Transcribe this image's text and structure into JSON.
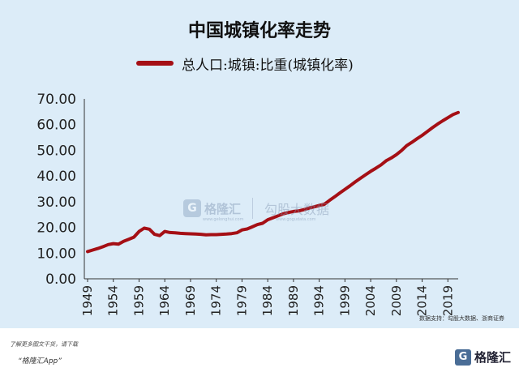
{
  "chart_data": {
    "type": "line",
    "title": "中国城镇化率走势",
    "xlabel": "",
    "ylabel": "",
    "ylim": [
      0,
      70
    ],
    "yticks": [
      "0.00",
      "10.00",
      "20.00",
      "30.00",
      "40.00",
      "50.00",
      "60.00",
      "70.00"
    ],
    "xticks": [
      "1949",
      "1954",
      "1959",
      "1964",
      "1969",
      "1974",
      "1979",
      "1984",
      "1989",
      "1994",
      "1999",
      "2004",
      "2009",
      "2014",
      "2019"
    ],
    "legend_position": "top",
    "series": [
      {
        "name": "总人口:城镇:比重(城镇化率)",
        "color": "#a50f15",
        "x": [
          1949,
          1950,
          1951,
          1952,
          1953,
          1954,
          1955,
          1956,
          1957,
          1958,
          1959,
          1960,
          1961,
          1962,
          1963,
          1964,
          1965,
          1966,
          1967,
          1968,
          1969,
          1970,
          1971,
          1972,
          1973,
          1974,
          1975,
          1976,
          1977,
          1978,
          1979,
          1980,
          1981,
          1982,
          1983,
          1984,
          1985,
          1986,
          1987,
          1988,
          1989,
          1990,
          1991,
          1992,
          1993,
          1994,
          1995,
          1996,
          1997,
          1998,
          1999,
          2000,
          2001,
          2002,
          2003,
          2004,
          2005,
          2006,
          2007,
          2008,
          2009,
          2010,
          2011,
          2012,
          2013,
          2014,
          2015,
          2016,
          2017,
          2018,
          2019,
          2020,
          2021
        ],
        "values": [
          10.6,
          11.2,
          11.8,
          12.5,
          13.3,
          13.7,
          13.5,
          14.6,
          15.4,
          16.2,
          18.4,
          19.7,
          19.3,
          17.3,
          16.8,
          18.4,
          18.0,
          17.9,
          17.7,
          17.6,
          17.5,
          17.4,
          17.3,
          17.1,
          17.2,
          17.2,
          17.3,
          17.4,
          17.6,
          17.9,
          19.0,
          19.4,
          20.2,
          21.1,
          21.6,
          23.0,
          23.7,
          24.5,
          25.3,
          25.8,
          26.2,
          26.4,
          26.9,
          27.5,
          28.0,
          28.5,
          29.0,
          30.5,
          31.9,
          33.4,
          34.8,
          36.2,
          37.7,
          39.1,
          40.5,
          41.8,
          43.0,
          44.3,
          45.9,
          47.0,
          48.3,
          49.9,
          51.8,
          53.1,
          54.5,
          55.8,
          57.3,
          58.8,
          60.2,
          61.5,
          62.7,
          63.9,
          64.7
        ]
      }
    ]
  },
  "watermark": {
    "logo_glyph": "G",
    "brand": "格隆汇",
    "brand2": "勾股大数据",
    "url1": "www.gelonghui.com",
    "url2": "www.gogudata.com"
  },
  "source_text": "数据支持：勾股大数据、浙商证券",
  "footer": {
    "note1": "了解更多图文干货，请下载",
    "note2": "“格隆汇App”",
    "logo_glyph": "G",
    "logo_text": "格隆汇"
  }
}
